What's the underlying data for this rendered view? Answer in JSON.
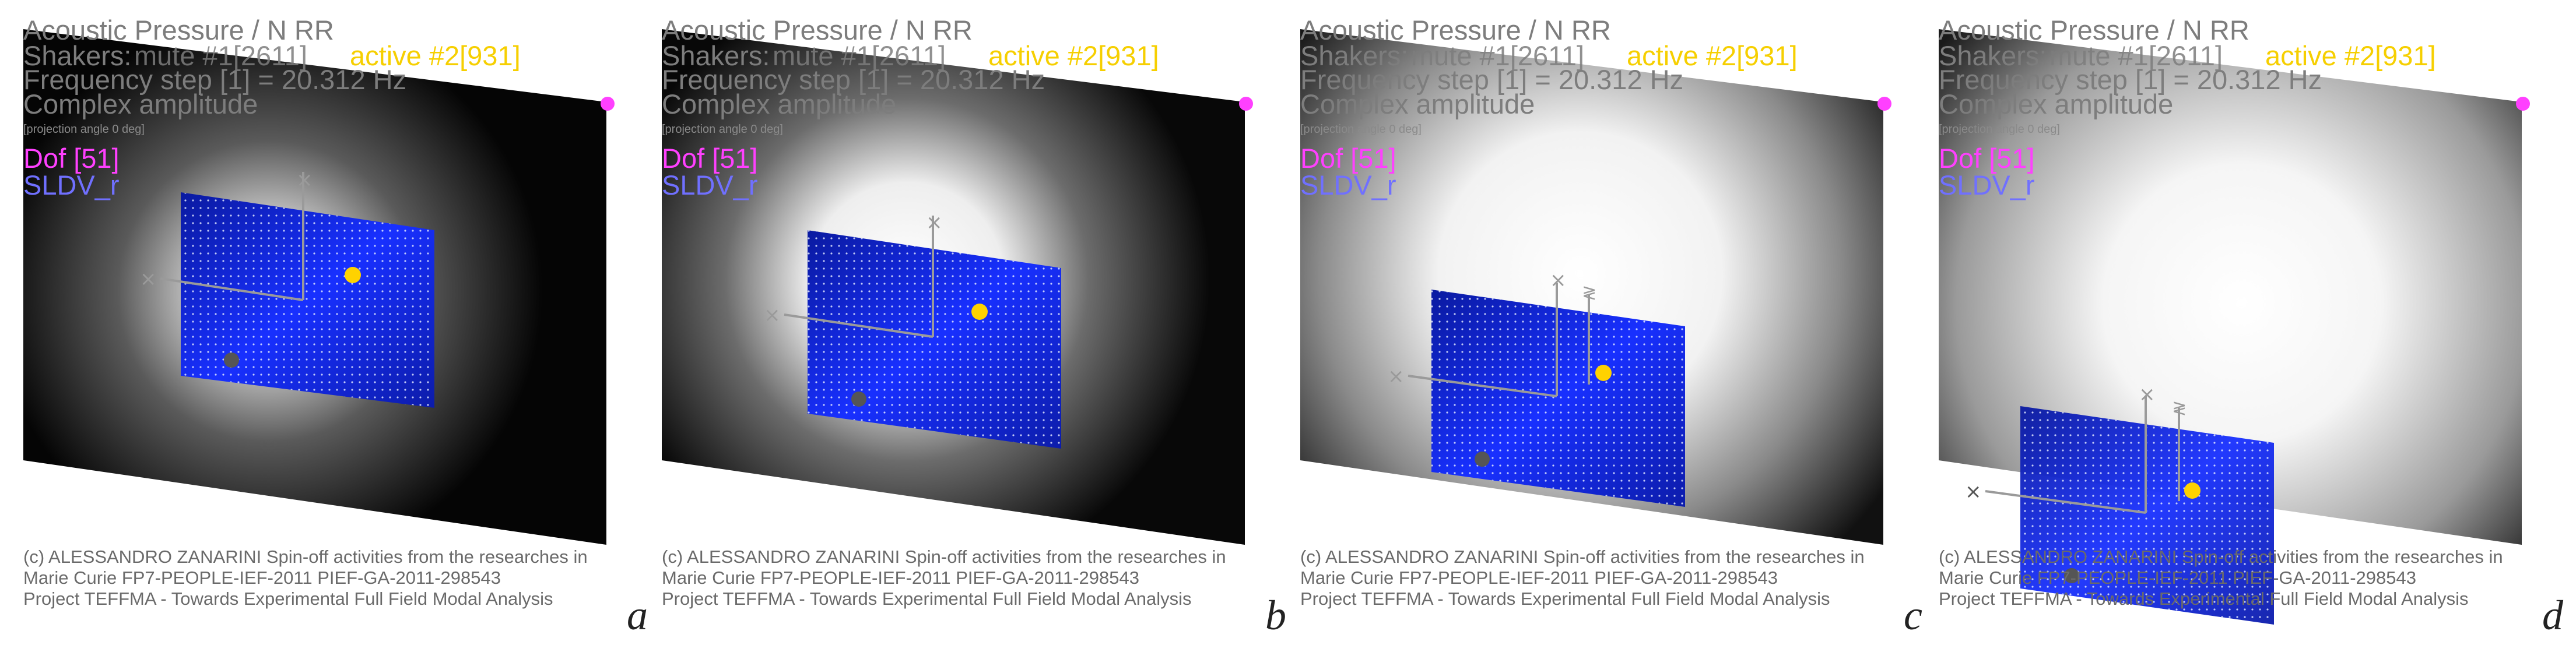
{
  "title": "Acoustic Pressure / N RR",
  "shakers_label": "Shakers:",
  "shakers_mute": "mute #1[2611]",
  "shakers_active": "active #2[931]",
  "frequency_step": "Frequency step [1] = 20.312 Hz",
  "amplitude_mode": "Complex amplitude",
  "projection": "[projection angle 0 deg]",
  "dof": "Dof [51]",
  "sldv": "SLDV_r",
  "credit_lines": [
    "(c) ALESSANDRO ZANARINI Spin-off activities from the researches in",
    "Marie Curie FP7-PEOPLE-IEF-2011 PIEF-GA-2011-298543",
    "Project TEFFMA - Towards Experimental Full Field Modal Analysis"
  ],
  "panel_letters": [
    "a",
    "b",
    "c",
    "d"
  ],
  "colors": {
    "plate_blue": "#1020ff",
    "active_point": "#ffd200",
    "mute_point": "#555555",
    "dof_marker": "#ff40ff"
  }
}
